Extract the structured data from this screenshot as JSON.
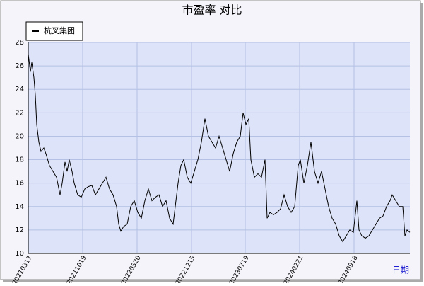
{
  "chart_data": {
    "type": "line",
    "title": "市盈率  对比",
    "x_label": "日期",
    "x": [
      0,
      3,
      5,
      8,
      10,
      12,
      15,
      18,
      22,
      25,
      30,
      35,
      40,
      45,
      48,
      52,
      55,
      58,
      62,
      65,
      70,
      75,
      80,
      85,
      90,
      95,
      100,
      105,
      110,
      115,
      120,
      125,
      128,
      131,
      135,
      140,
      145,
      150,
      155,
      160,
      165,
      170,
      175,
      180,
      185,
      190,
      195,
      200,
      205,
      208,
      212,
      216,
      220,
      225,
      230,
      235,
      240,
      245,
      250,
      255,
      260,
      265,
      270,
      275,
      280,
      285,
      290,
      295,
      300,
      304,
      308,
      312,
      315,
      320,
      325,
      330,
      335,
      338,
      342,
      347,
      352,
      357,
      362,
      367,
      372,
      377,
      382,
      385,
      390,
      395,
      400,
      405,
      410,
      415,
      420,
      425,
      430,
      435,
      440,
      445,
      450,
      455,
      460,
      465,
      468,
      472,
      477,
      482,
      487,
      492,
      497,
      502,
      507,
      512,
      515,
      520,
      525,
      530,
      533,
      536,
      540
    ],
    "series": [
      {
        "name": "杭叉集团",
        "color": "#000000",
        "values": [
          27,
          25.5,
          26.3,
          25,
          23.5,
          21,
          19.5,
          18.7,
          19,
          18.5,
          17.5,
          17,
          16.5,
          15,
          16,
          17.8,
          17,
          18,
          17,
          16,
          15,
          14.8,
          15.5,
          15.7,
          15.8,
          15,
          15.5,
          16,
          16.5,
          15.5,
          15,
          14,
          12.5,
          11.9,
          12.3,
          12.5,
          14,
          14.5,
          13.5,
          13,
          14.5,
          15.5,
          14.5,
          14.8,
          15,
          14,
          14.5,
          13,
          12.5,
          14,
          16,
          17.5,
          18,
          16.5,
          16,
          17,
          18,
          19.5,
          21.5,
          20,
          19.5,
          19,
          20,
          19,
          18,
          17,
          18.5,
          19.5,
          20,
          22,
          21,
          21.5,
          18,
          16.5,
          16.8,
          16.5,
          18,
          13,
          13.5,
          13.3,
          13.5,
          13.8,
          15,
          14,
          13.5,
          14,
          17.5,
          18,
          16,
          17.5,
          19.5,
          17,
          16,
          17,
          15.5,
          14,
          13,
          12.5,
          11.5,
          11,
          11.5,
          12,
          11.8,
          14.5,
          12,
          11.5,
          11.3,
          11.5,
          12,
          12.5,
          13,
          13.2,
          14,
          14.5,
          15,
          14.5,
          14,
          14,
          11.5,
          12,
          11.8
        ]
      }
    ],
    "xlim": [
      0,
      540
    ],
    "xticks": [
      {
        "value": 0,
        "label": "20210317"
      },
      {
        "value": 77,
        "label": "20211019"
      },
      {
        "value": 154,
        "label": "20220520"
      },
      {
        "value": 231,
        "label": "20221215"
      },
      {
        "value": 307,
        "label": "20230719"
      },
      {
        "value": 384,
        "label": "20240221"
      },
      {
        "value": 461,
        "label": "20240918"
      }
    ],
    "ylim": [
      10,
      28
    ],
    "yticks": [
      10,
      12,
      14,
      16,
      18,
      20,
      22,
      24,
      26,
      28
    ],
    "grid": true
  }
}
